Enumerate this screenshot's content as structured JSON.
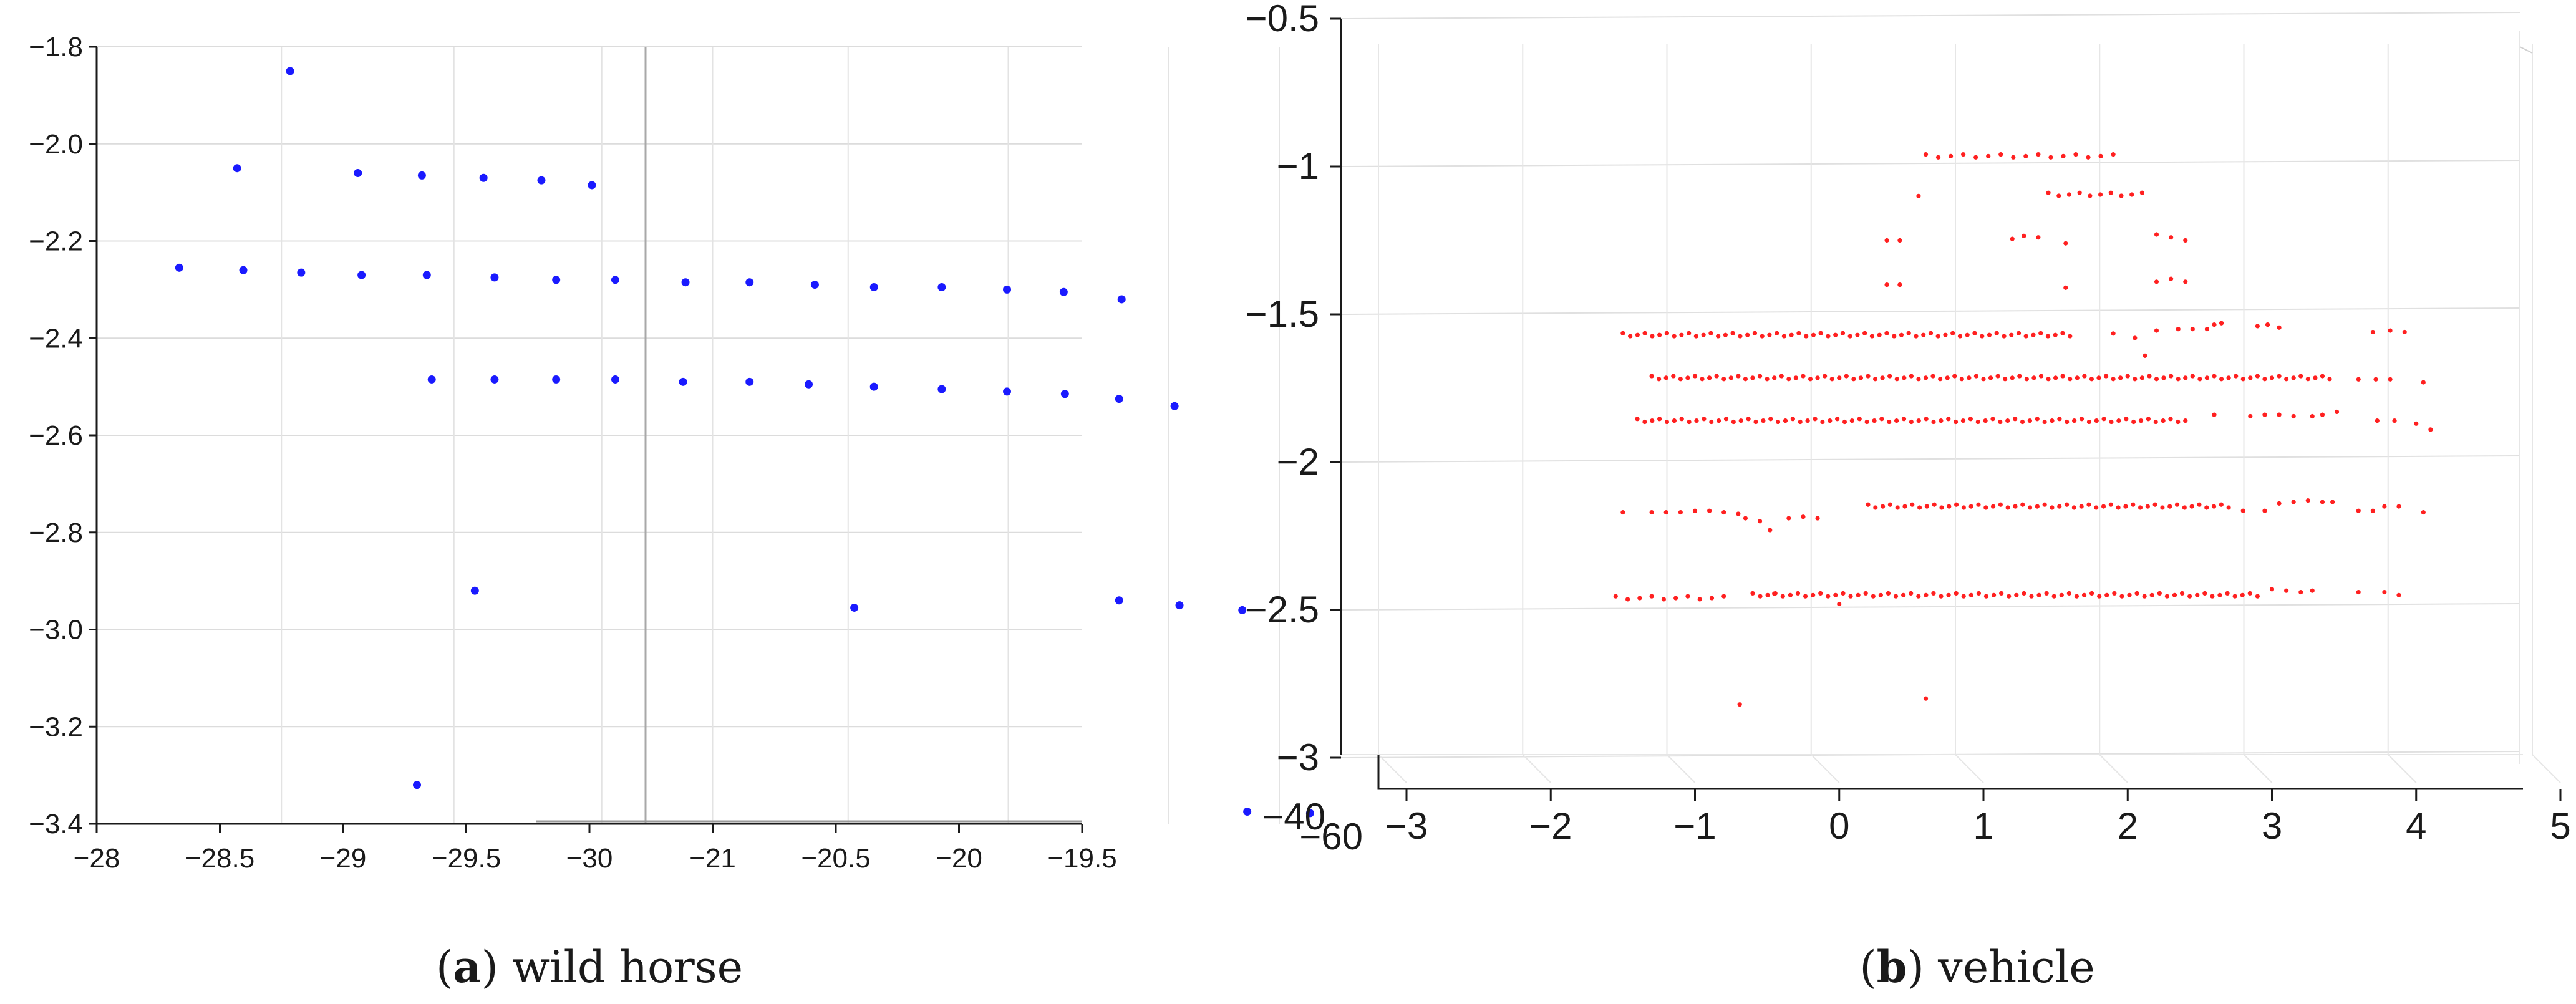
{
  "chart_data": [
    {
      "type": "scatter",
      "panel": "a",
      "caption_letter": "a",
      "caption_text": "wild horse",
      "color": "#1a1aff",
      "x_tick_labels": [
        "−28",
        "−28.5",
        "−29",
        "−29.5",
        "−30",
        "−21",
        "−20.5",
        "−20",
        "−19.5"
      ],
      "y_tick_labels": [
        "−1.8",
        "−2.0",
        "−2.2",
        "−2.4",
        "−2.6",
        "−2.8",
        "−3.0",
        "−3.2",
        "−3.4"
      ],
      "y_ticks": [
        -1.8,
        -2.0,
        -2.2,
        -2.4,
        -2.6,
        -2.8,
        -3.0,
        -3.2,
        -3.4
      ],
      "ylim": [
        -1.8,
        -3.4
      ],
      "x_tick_count": 9,
      "points": [
        {
          "x": 1.57,
          "y": -1.85
        },
        {
          "x": 1.14,
          "y": -2.05
        },
        {
          "x": 2.12,
          "y": -2.06
        },
        {
          "x": 2.64,
          "y": -2.065
        },
        {
          "x": 3.14,
          "y": -2.07
        },
        {
          "x": 3.61,
          "y": -2.075
        },
        {
          "x": 4.02,
          "y": -2.085
        },
        {
          "x": 0.67,
          "y": -2.255
        },
        {
          "x": 1.19,
          "y": -2.26
        },
        {
          "x": 1.66,
          "y": -2.265
        },
        {
          "x": 2.15,
          "y": -2.27
        },
        {
          "x": 2.68,
          "y": -2.27
        },
        {
          "x": 3.23,
          "y": -2.275
        },
        {
          "x": 3.73,
          "y": -2.28
        },
        {
          "x": 4.21,
          "y": -2.28
        },
        {
          "x": 4.78,
          "y": -2.285
        },
        {
          "x": 5.3,
          "y": -2.285
        },
        {
          "x": 5.83,
          "y": -2.29
        },
        {
          "x": 6.31,
          "y": -2.295
        },
        {
          "x": 6.86,
          "y": -2.295
        },
        {
          "x": 7.39,
          "y": -2.3
        },
        {
          "x": 7.85,
          "y": -2.305
        },
        {
          "x": 8.32,
          "y": -2.32
        },
        {
          "x": 2.72,
          "y": -2.485
        },
        {
          "x": 3.23,
          "y": -2.485
        },
        {
          "x": 3.73,
          "y": -2.485
        },
        {
          "x": 4.21,
          "y": -2.485
        },
        {
          "x": 4.76,
          "y": -2.49
        },
        {
          "x": 5.3,
          "y": -2.49
        },
        {
          "x": 5.78,
          "y": -2.495
        },
        {
          "x": 6.31,
          "y": -2.5
        },
        {
          "x": 6.86,
          "y": -2.505
        },
        {
          "x": 7.39,
          "y": -2.51
        },
        {
          "x": 7.86,
          "y": -2.515
        },
        {
          "x": 8.3,
          "y": -2.525
        },
        {
          "x": 8.75,
          "y": -2.54
        },
        {
          "x": 3.07,
          "y": -2.92
        },
        {
          "x": 6.15,
          "y": -2.955
        },
        {
          "x": 8.3,
          "y": -2.94
        },
        {
          "x": 8.79,
          "y": -2.95
        },
        {
          "x": 9.3,
          "y": -2.96
        },
        {
          "x": 2.6,
          "y": -3.32
        },
        {
          "x": 9.34,
          "y": -3.375
        },
        {
          "x": 9.85,
          "y": -3.378
        }
      ]
    },
    {
      "type": "scatter",
      "panel": "b",
      "caption_letter": "b",
      "caption_text": "vehicle",
      "color": "#ff2020",
      "x_ticks": [
        -3,
        -2,
        -1,
        0,
        1,
        2,
        3,
        4,
        5
      ],
      "xlim": [
        -3,
        5
      ],
      "y_ticks": [
        -0.5,
        -1,
        -1.5,
        -2,
        -2.5,
        -3
      ],
      "y_tick_labels": [
        "−0.5",
        "−1",
        "−1.5",
        "−2",
        "−2.5",
        "−3"
      ],
      "ylim": [
        -0.5,
        -3
      ],
      "depth_tick_labels": [
        "−40",
        "−60"
      ],
      "rows": [
        {
          "y": -0.965,
          "from": 0.6,
          "to": 1.9,
          "n": 16
        },
        {
          "y": -1.095,
          "from": 1.45,
          "to": 2.1,
          "n": 10
        },
        {
          "y": -1.57,
          "from": -1.5,
          "to": 1.6,
          "n": 62
        },
        {
          "y": -1.715,
          "from": -1.3,
          "to": 3.4,
          "n": 95
        },
        {
          "y": -1.86,
          "from": -1.4,
          "to": 2.4,
          "n": 75
        },
        {
          "y": -2.15,
          "from": 0.2,
          "to": 2.7,
          "n": 50
        },
        {
          "y": -2.45,
          "from": -0.6,
          "to": 2.9,
          "n": 68
        },
        {
          "y": -2.46,
          "from": -1.55,
          "to": -0.8,
          "n": 10
        }
      ],
      "points": [
        {
          "x": -0.69,
          "y": -2.82
        },
        {
          "x": 0.6,
          "y": -2.8
        },
        {
          "x": 0.33,
          "y": -1.25
        },
        {
          "x": 0.42,
          "y": -1.25
        },
        {
          "x": 0.33,
          "y": -1.4
        },
        {
          "x": 0.42,
          "y": -1.4
        },
        {
          "x": 0.55,
          "y": -1.1
        },
        {
          "x": 1.2,
          "y": -1.245
        },
        {
          "x": 1.28,
          "y": -1.235
        },
        {
          "x": 1.38,
          "y": -1.24
        },
        {
          "x": 1.57,
          "y": -1.26
        },
        {
          "x": 1.57,
          "y": -1.41
        },
        {
          "x": 2.2,
          "y": -1.23
        },
        {
          "x": 2.3,
          "y": -1.24
        },
        {
          "x": 2.4,
          "y": -1.25
        },
        {
          "x": 2.2,
          "y": -1.39
        },
        {
          "x": 2.3,
          "y": -1.38
        },
        {
          "x": 2.4,
          "y": -1.39
        },
        {
          "x": 1.9,
          "y": -1.565
        },
        {
          "x": 2.05,
          "y": -1.58
        },
        {
          "x": 2.12,
          "y": -1.64
        },
        {
          "x": 2.2,
          "y": -1.555
        },
        {
          "x": 2.35,
          "y": -1.55
        },
        {
          "x": 2.45,
          "y": -1.55
        },
        {
          "x": 2.55,
          "y": -1.55
        },
        {
          "x": 2.6,
          "y": -1.535
        },
        {
          "x": 2.65,
          "y": -1.53
        },
        {
          "x": 2.9,
          "y": -1.54
        },
        {
          "x": 2.97,
          "y": -1.535
        },
        {
          "x": 3.05,
          "y": -1.545
        },
        {
          "x": 3.7,
          "y": -1.56
        },
        {
          "x": 3.82,
          "y": -1.555
        },
        {
          "x": 3.92,
          "y": -1.56
        },
        {
          "x": 3.6,
          "y": -1.72
        },
        {
          "x": 3.72,
          "y": -1.72
        },
        {
          "x": 3.82,
          "y": -1.72
        },
        {
          "x": 4.05,
          "y": -1.73
        },
        {
          "x": 2.6,
          "y": -1.84
        },
        {
          "x": 2.85,
          "y": -1.845
        },
        {
          "x": 2.95,
          "y": -1.84
        },
        {
          "x": 3.05,
          "y": -1.84
        },
        {
          "x": 3.15,
          "y": -1.845
        },
        {
          "x": 3.28,
          "y": -1.845
        },
        {
          "x": 3.35,
          "y": -1.84
        },
        {
          "x": 3.45,
          "y": -1.83
        },
        {
          "x": 3.73,
          "y": -1.86
        },
        {
          "x": 3.85,
          "y": -1.86
        },
        {
          "x": 4.0,
          "y": -1.87
        },
        {
          "x": 4.1,
          "y": -1.89
        },
        {
          "x": -1.5,
          "y": -2.17
        },
        {
          "x": -1.3,
          "y": -2.17
        },
        {
          "x": -1.2,
          "y": -2.17
        },
        {
          "x": -1.1,
          "y": -2.17
        },
        {
          "x": -1.0,
          "y": -2.165
        },
        {
          "x": -0.9,
          "y": -2.165
        },
        {
          "x": -0.8,
          "y": -2.17
        },
        {
          "x": -0.7,
          "y": -2.175
        },
        {
          "x": -0.65,
          "y": -2.19
        },
        {
          "x": -0.55,
          "y": -2.2
        },
        {
          "x": -0.48,
          "y": -2.23
        },
        {
          "x": -0.35,
          "y": -2.19
        },
        {
          "x": -0.25,
          "y": -2.185
        },
        {
          "x": -0.15,
          "y": -2.19
        },
        {
          "x": 2.8,
          "y": -2.165
        },
        {
          "x": 2.95,
          "y": -2.165
        },
        {
          "x": 3.05,
          "y": -2.14
        },
        {
          "x": 3.15,
          "y": -2.135
        },
        {
          "x": 3.25,
          "y": -2.13
        },
        {
          "x": 3.35,
          "y": -2.135
        },
        {
          "x": 3.42,
          "y": -2.135
        },
        {
          "x": 3.6,
          "y": -2.165
        },
        {
          "x": 3.7,
          "y": -2.165
        },
        {
          "x": 3.78,
          "y": -2.15
        },
        {
          "x": 3.88,
          "y": -2.15
        },
        {
          "x": 4.05,
          "y": -2.17
        },
        {
          "x": -0.45,
          "y": -2.445
        },
        {
          "x": 0.0,
          "y": -2.48
        },
        {
          "x": 3.0,
          "y": -2.43
        },
        {
          "x": 3.1,
          "y": -2.435
        },
        {
          "x": 3.2,
          "y": -2.44
        },
        {
          "x": 3.28,
          "y": -2.435
        },
        {
          "x": 3.6,
          "y": -2.44
        },
        {
          "x": 3.78,
          "y": -2.44
        },
        {
          "x": 3.88,
          "y": -2.45
        }
      ]
    }
  ]
}
